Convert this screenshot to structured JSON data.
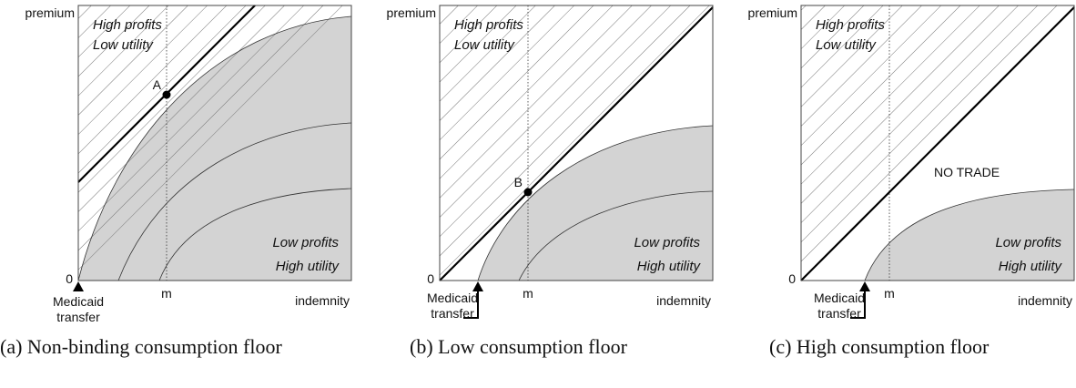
{
  "panels": [
    {
      "y_axis_label": "premium",
      "origin": "0",
      "m_label": "m",
      "x_axis_label": "indemnity",
      "transfer_label": [
        "Medicaid",
        "transfer"
      ],
      "top_label": [
        "High profits",
        "Low utility"
      ],
      "bottom_label": [
        "Low profits",
        "High utility"
      ],
      "point": "A",
      "caption": "(a) Non-binding consumption floor"
    },
    {
      "y_axis_label": "premium",
      "origin": "0",
      "m_label": "m",
      "x_axis_label": "indemnity",
      "transfer_label": [
        "Medicaid",
        "transfer"
      ],
      "top_label": [
        "High profits",
        "Low utility"
      ],
      "bottom_label": [
        "Low profits",
        "High utility"
      ],
      "point": "B",
      "caption": "(b) Low consumption floor"
    },
    {
      "y_axis_label": "premium",
      "origin": "0",
      "m_label": "m",
      "x_axis_label": "indemnity",
      "transfer_label": [
        "Medicaid",
        "transfer"
      ],
      "top_label": [
        "High profits",
        "Low utility"
      ],
      "bottom_label": [
        "Low profits",
        "High utility"
      ],
      "region_label": "NO TRADE",
      "caption": "(c) High consumption floor"
    }
  ]
}
